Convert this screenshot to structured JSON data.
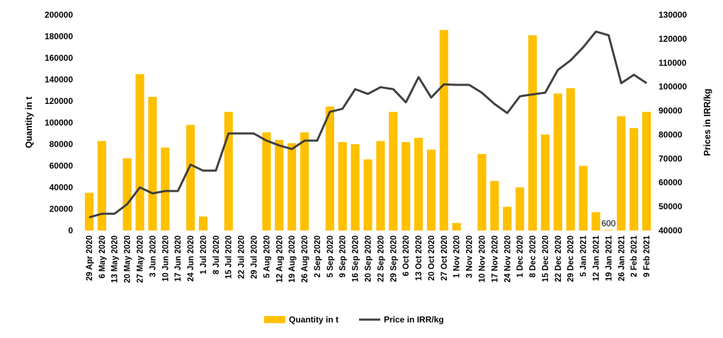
{
  "chart_data": {
    "type": "bar+line",
    "categories": [
      "29 Apr 2020",
      "6 May 2020",
      "13 May 2020",
      "20 May 2020",
      "27 May 2020",
      "3 Jun 2020",
      "10 Jun 2020",
      "17 Jun 2020",
      "24 Jun 2020",
      "1 Jul 2020",
      "8 Jul 2020",
      "15 Jul 2020",
      "22 Jul 2020",
      "29 Jul 2020",
      "5 Aug 2020",
      "12 Aug 2020",
      "19 Aug 2020",
      "26 Aug 2020",
      "2 Sep 2020",
      "5 Sep 2020",
      "9 Sep 2020",
      "16 Sep 2020",
      "20 Sep 2020",
      "22 Sep 2020",
      "29 Sep 2020",
      "6 Oct 2020",
      "13 Oct 2020",
      "20 Oct 2020",
      "27 Oct 2020",
      "1 Nov 2020",
      "3 Nov 2020",
      "10 Nov 2020",
      "17 Nov 2020",
      "24 Nov 2020",
      "1 Dec 2020",
      "8 Dec 2020",
      "15 Dec 2020",
      "22 Dec 2020",
      "29 Dec 2020",
      "5 Jan 2021",
      "12 Jan 2021",
      "19 Jan 2021",
      "26 Jan 2021",
      "2 Feb 2021",
      "9 Feb 2021"
    ],
    "series": [
      {
        "name": "Quantity in t",
        "kind": "bar",
        "axis": "left",
        "color": "#FFC000",
        "values": [
          35000,
          83000,
          0,
          67000,
          145000,
          124000,
          77000,
          0,
          98000,
          13000,
          0,
          110000,
          0,
          0,
          91000,
          84000,
          81000,
          91000,
          0,
          115000,
          82000,
          80000,
          66000,
          83000,
          110000,
          82000,
          86000,
          75000,
          186000,
          7000,
          0,
          71000,
          46000,
          22000,
          40000,
          181000,
          89000,
          127000,
          132000,
          60000,
          17000,
          600,
          106000,
          95000,
          110000
        ]
      },
      {
        "name": "Price in IRR/kg",
        "kind": "line",
        "axis": "right",
        "color": "#404040",
        "values": [
          45500,
          47000,
          47000,
          51000,
          58000,
          55500,
          56500,
          56500,
          67500,
          65000,
          65000,
          80500,
          80500,
          80500,
          77500,
          75500,
          74000,
          77500,
          77500,
          89500,
          90800,
          99000,
          97000,
          99800,
          99000,
          93500,
          104000,
          95500,
          101000,
          100800,
          100800,
          97500,
          92800,
          89000,
          96000,
          96800,
          97500,
          107000,
          111000,
          116500,
          123000,
          121500,
          101500,
          105000,
          101500
        ]
      }
    ],
    "left_axis": {
      "label": "Quantity in t",
      "ylim": [
        0,
        200000
      ],
      "ticks": [
        "0",
        "20000",
        "40000",
        "60000",
        "80000",
        "100000",
        "120000",
        "140000",
        "160000",
        "180000",
        "200000"
      ]
    },
    "right_axis": {
      "label": "Prices in IRR/kg",
      "ylim": [
        40000,
        130000
      ],
      "ticks": [
        "40000",
        "50000",
        "60000",
        "70000",
        "80000",
        "90000",
        "100000",
        "110000",
        "120000",
        "130000"
      ]
    },
    "annotations": [
      {
        "text": "600",
        "category": "19 Jan 2021"
      }
    ],
    "legend": {
      "position": "bottom",
      "items": [
        "Quantity in t",
        "Price in IRR/kg"
      ]
    },
    "grid": false
  }
}
